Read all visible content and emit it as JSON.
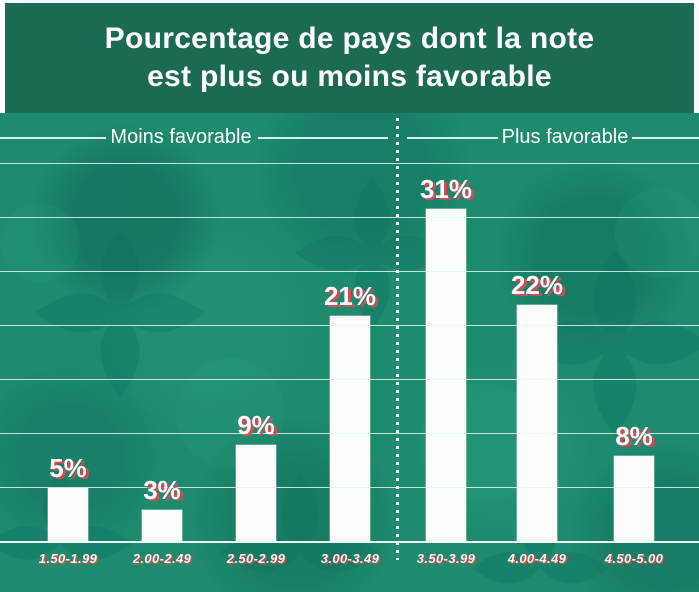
{
  "banner": {
    "title_line1": "Pourcentage de pays dont la note",
    "title_line2": "est plus ou moins favorable"
  },
  "sections": {
    "left_label": "Moins favorable",
    "right_label": "Plus favorable"
  },
  "chart_data": {
    "type": "bar",
    "title": "Pourcentage de pays dont la note est plus ou moins favorable",
    "categories": [
      "1.50-1.99",
      "2.00-2.49",
      "2.50-2.99",
      "3.00-3.49",
      "3.50-3.99",
      "4.00-4.49",
      "4.50-5.00"
    ],
    "values": [
      5,
      3,
      9,
      21,
      31,
      22,
      8
    ],
    "value_labels": [
      "5%",
      "3%",
      "9%",
      "21%",
      "31%",
      "22%",
      "8%"
    ],
    "xlabel": "",
    "ylabel": "",
    "ylim": [
      0,
      35
    ],
    "gridline_step": 5,
    "grid": true,
    "legend": "none",
    "bar_color": "white",
    "divider": {
      "style": "dotted-vertical-line",
      "between_categories": [
        "3.00-3.49",
        "3.50-3.99"
      ]
    },
    "group_labels": [
      {
        "label": "Moins favorable",
        "categories": [
          "1.50-1.99",
          "2.00-2.49",
          "2.50-2.99",
          "3.00-3.49"
        ]
      },
      {
        "label": "Plus favorable",
        "categories": [
          "3.50-3.99",
          "4.00-4.49",
          "4.50-5.00"
        ]
      }
    ]
  },
  "colors": {
    "banner_green": "#1a6a54",
    "chart_green": "#1e8a6e",
    "bar_white": "#fdfefc",
    "value_shadow_red": "#de4850",
    "gridline_white": "#e3f5ee",
    "text_white": "#ffffff"
  }
}
